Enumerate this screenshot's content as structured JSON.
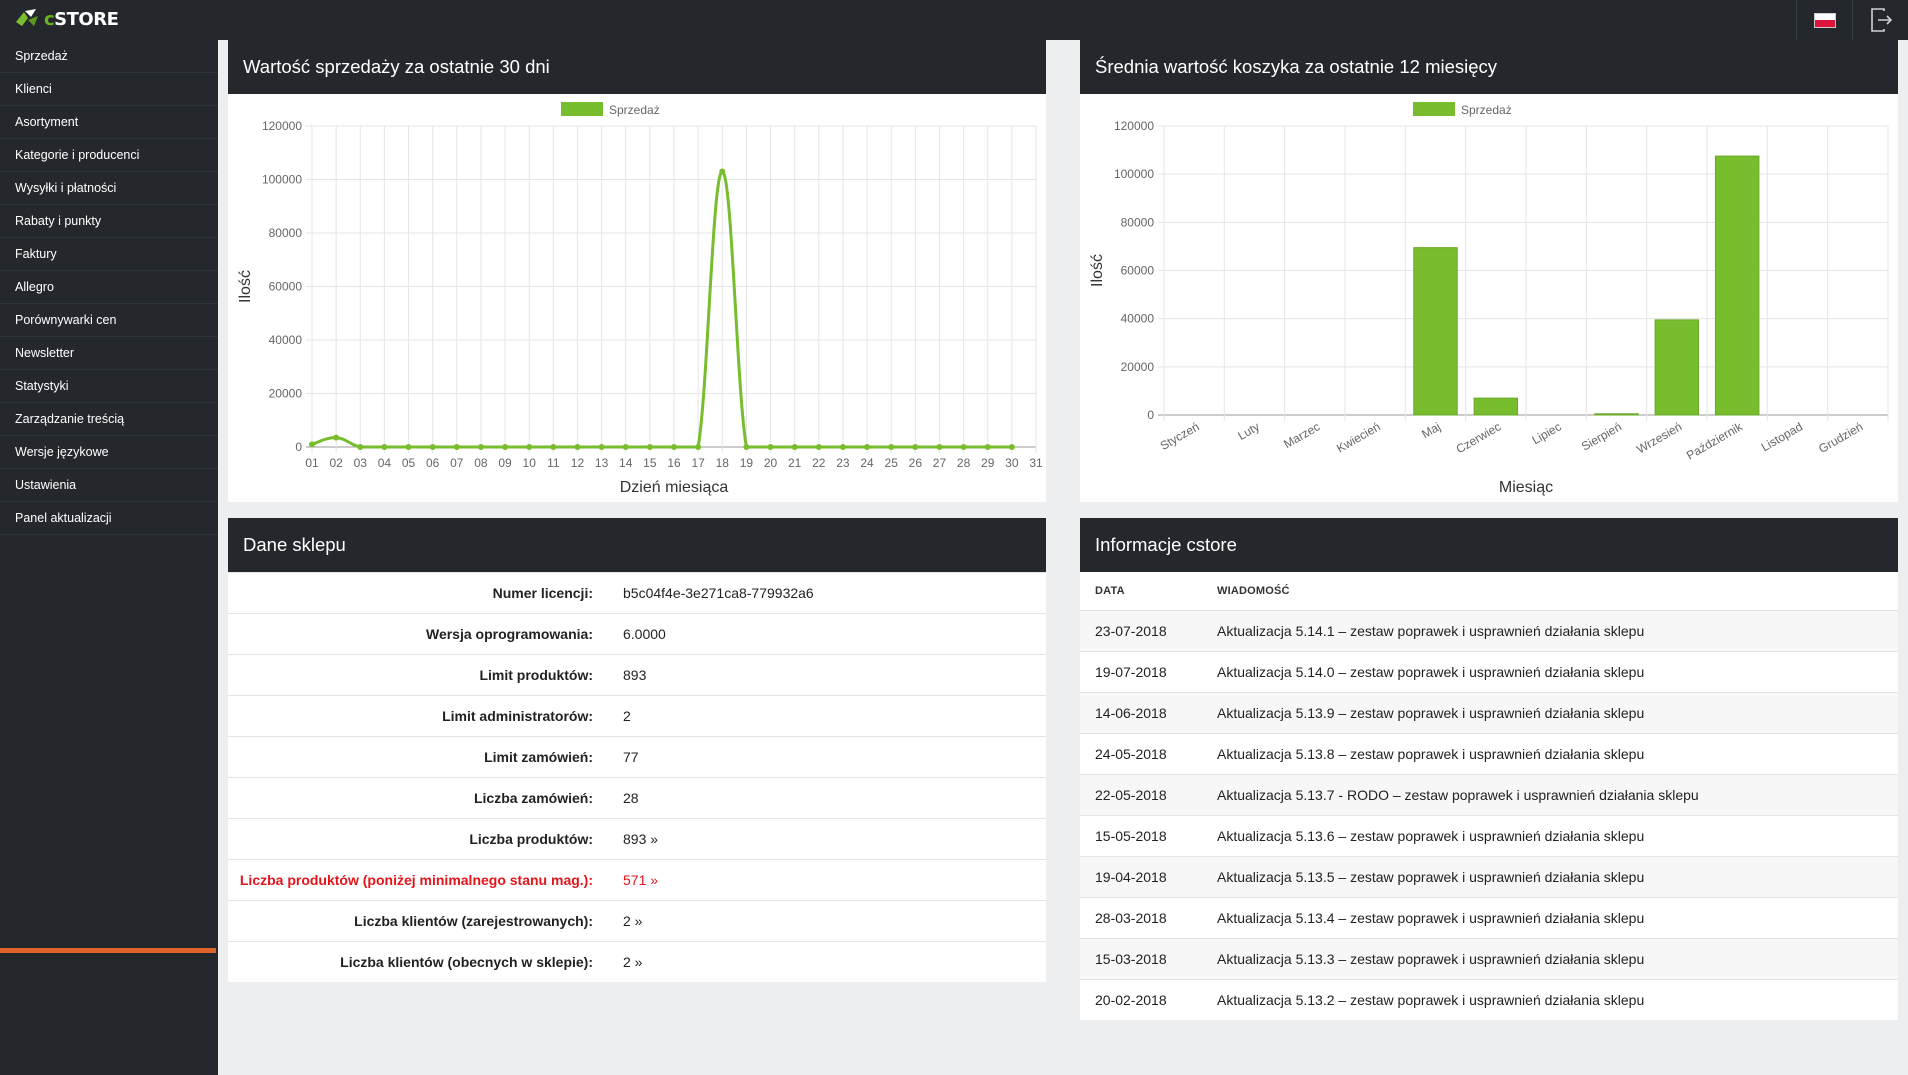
{
  "app": {
    "logo_c": "c",
    "logo_rest": "STORE"
  },
  "sidebar": {
    "items": [
      {
        "label": "Sprzedaż"
      },
      {
        "label": "Klienci"
      },
      {
        "label": "Asortyment"
      },
      {
        "label": "Kategorie i producenci"
      },
      {
        "label": "Wysyłki i płatności"
      },
      {
        "label": "Rabaty i punkty"
      },
      {
        "label": "Faktury"
      },
      {
        "label": "Allegro"
      },
      {
        "label": "Porównywarki cen"
      },
      {
        "label": "Newsletter"
      },
      {
        "label": "Statystyki"
      },
      {
        "label": "Zarządzanie treścią"
      },
      {
        "label": "Wersje językowe"
      },
      {
        "label": "Ustawienia"
      },
      {
        "label": "Panel aktualizacji"
      }
    ]
  },
  "topbar": {
    "flag_icon": "poland-flag-icon",
    "logout_icon": "logout-icon"
  },
  "sales_panel": {
    "title": "Wartość sprzedaży za ostatnie 30 dni"
  },
  "basket_panel": {
    "title": "Średnia wartość koszyka za ostatnie 12 miesięcy"
  },
  "shop_panel": {
    "title": "Dane sklepu",
    "rows": [
      {
        "label": "Numer licencji:",
        "value": "b5c04f4e-3e271ca8-779932a6"
      },
      {
        "label": "Wersja oprogramowania:",
        "value": "6.0000"
      },
      {
        "label": "Limit produktów:",
        "value": "893"
      },
      {
        "label": "Limit administratorów:",
        "value": "2"
      },
      {
        "label": "Limit zamówień:",
        "value": "77"
      },
      {
        "label": "Liczba zamówień:",
        "value": "28"
      },
      {
        "label": "Liczba produktów:",
        "value": "893 »"
      },
      {
        "label": "Liczba produktów (poniżej minimalnego stanu mag.):",
        "value": "571 »"
      },
      {
        "label": "Liczba klientów (zarejestrowanych):",
        "value": "2 »"
      },
      {
        "label": "Liczba klientów (obecnych w sklepie):",
        "value": "2 »"
      }
    ],
    "warning_color": "#e3141a"
  },
  "news_panel": {
    "title": "Informacje cstore",
    "col_date": "DATA",
    "col_message": "WIADOMOŚĆ",
    "rows": [
      {
        "date": "23-07-2018",
        "message": "Aktualizacja 5.14.1 – zestaw poprawek i usprawnień działania sklepu"
      },
      {
        "date": "19-07-2018",
        "message": "Aktualizacja 5.14.0 – zestaw poprawek i usprawnień działania sklepu"
      },
      {
        "date": "14-06-2018",
        "message": "Aktualizacja 5.13.9 – zestaw poprawek i usprawnień działania sklepu"
      },
      {
        "date": "24-05-2018",
        "message": "Aktualizacja 5.13.8 – zestaw poprawek i usprawnień działania sklepu"
      },
      {
        "date": "22-05-2018",
        "message": "Aktualizacja 5.13.7 - RODO – zestaw poprawek i usprawnień działania sklepu"
      },
      {
        "date": "15-05-2018",
        "message": "Aktualizacja 5.13.6 – zestaw poprawek i usprawnień działania sklepu"
      },
      {
        "date": "19-04-2018",
        "message": "Aktualizacja 5.13.5 – zestaw poprawek i usprawnień działania sklepu"
      },
      {
        "date": "28-03-2018",
        "message": "Aktualizacja 5.13.4 – zestaw poprawek i usprawnień działania sklepu"
      },
      {
        "date": "15-03-2018",
        "message": "Aktualizacja 5.13.3 – zestaw poprawek i usprawnień działania sklepu"
      },
      {
        "date": "20-02-2018",
        "message": "Aktualizacja 5.13.2 – zestaw poprawek i usprawnień działania sklepu"
      }
    ]
  },
  "chart_data": [
    {
      "type": "line",
      "legend": "Sprzedaż",
      "legend_position": "top",
      "xlabel": "Dzień miesiąca",
      "ylabel": "Ilość",
      "ylim": [
        0,
        120000
      ],
      "yticks": [
        0,
        20000,
        40000,
        60000,
        80000,
        100000,
        120000
      ],
      "categories": [
        "01",
        "02",
        "03",
        "04",
        "05",
        "06",
        "07",
        "08",
        "09",
        "10",
        "11",
        "12",
        "13",
        "14",
        "15",
        "16",
        "17",
        "18",
        "19",
        "20",
        "21",
        "22",
        "23",
        "24",
        "25",
        "26",
        "27",
        "28",
        "29",
        "30",
        "31"
      ],
      "values": [
        1000,
        3500,
        0,
        0,
        0,
        0,
        0,
        0,
        0,
        0,
        0,
        0,
        0,
        0,
        0,
        0,
        0,
        103000,
        0,
        0,
        0,
        0,
        0,
        0,
        0,
        0,
        0,
        0,
        0,
        0,
        null
      ],
      "color": "#77bd2e",
      "grid": true
    },
    {
      "type": "bar",
      "legend": "Sprzedaż",
      "legend_position": "top",
      "xlabel": "Miesiąc",
      "ylabel": "Ilość",
      "ylim": [
        0,
        120000
      ],
      "yticks": [
        0,
        20000,
        40000,
        60000,
        80000,
        100000,
        120000
      ],
      "categories": [
        "Styczeń",
        "Luty",
        "Marzec",
        "Kwiecień",
        "Maj",
        "Czerwiec",
        "Lipiec",
        "Sierpień",
        "Wrzesień",
        "Październik",
        "Listopad",
        "Grudzień"
      ],
      "values": [
        0,
        0,
        0,
        0,
        69500,
        7000,
        0,
        500,
        39500,
        107500,
        0,
        0
      ],
      "color": "#77bd2e",
      "grid": true
    }
  ]
}
